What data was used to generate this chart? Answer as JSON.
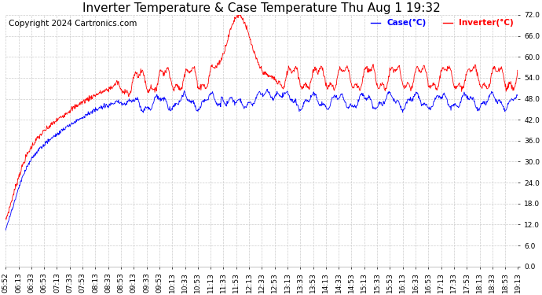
{
  "title": "Inverter Temperature & Case Temperature Thu Aug 1 19:32",
  "copyright": "Copyright 2024 Cartronics.com",
  "legend_case": "Case(°C)",
  "legend_inverter": "Inverter(°C)",
  "ylabel_right_vals": [
    0.0,
    6.0,
    12.0,
    18.0,
    24.0,
    30.0,
    36.0,
    42.0,
    48.0,
    54.0,
    60.0,
    66.0,
    72.0
  ],
  "ylim": [
    0.0,
    72.0
  ],
  "background_color": "#ffffff",
  "grid_color": "#cccccc",
  "case_color": "blue",
  "inverter_color": "red",
  "title_fontsize": 11,
  "tick_fontsize": 6.5,
  "copyright_fontsize": 7.5,
  "xtick_labels": [
    "05:52",
    "06:13",
    "06:33",
    "06:53",
    "07:13",
    "07:33",
    "07:53",
    "08:13",
    "08:33",
    "08:53",
    "09:13",
    "09:33",
    "09:53",
    "10:13",
    "10:33",
    "10:53",
    "11:13",
    "11:33",
    "11:53",
    "12:13",
    "12:33",
    "12:53",
    "13:13",
    "13:33",
    "13:53",
    "14:13",
    "14:33",
    "14:53",
    "15:13",
    "15:33",
    "15:53",
    "16:13",
    "16:33",
    "16:53",
    "17:13",
    "17:33",
    "17:53",
    "18:13",
    "18:33",
    "18:53",
    "19:13"
  ]
}
